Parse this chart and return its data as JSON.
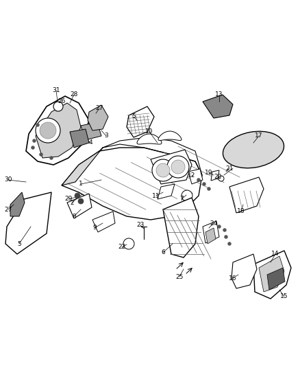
{
  "background_color": "#ffffff",
  "line_color": "#000000",
  "figure_width": 4.38,
  "figure_height": 5.33,
  "dpi": 100
}
